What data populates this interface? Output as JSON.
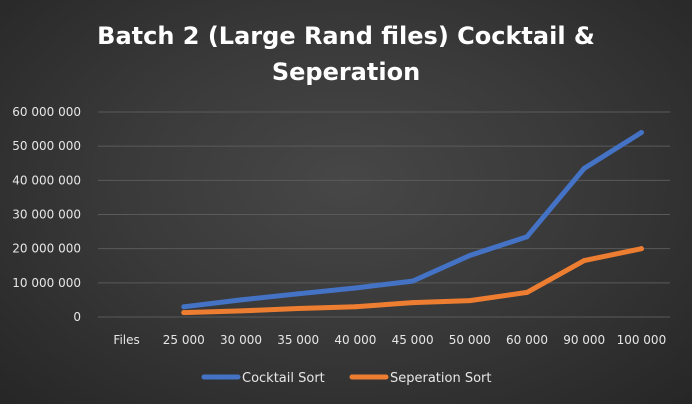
{
  "chart_data": {
    "type": "line",
    "title_lines": [
      "Batch 2 (Large Rand files) Cocktail &",
      "Seperation"
    ],
    "categories": [
      "Files",
      "25 000",
      "30 000",
      "35 000",
      "40 000",
      "45 000",
      "50 000",
      "60 000",
      "90 000",
      "100 000"
    ],
    "y_ticks": [
      "0",
      "10 000 000",
      "20 000 000",
      "30 000 000",
      "40 000 000",
      "50 000 000",
      "60 000 000"
    ],
    "ylim": [
      0,
      60000000
    ],
    "grid": true,
    "legend_position": "bottom",
    "series": [
      {
        "name": "Cocktail Sort",
        "color": "#4472c4",
        "values": [
          null,
          3000000,
          5000000,
          6800000,
          8500000,
          10500000,
          18000000,
          23500000,
          43500000,
          54000000
        ]
      },
      {
        "name": "Seperation Sort",
        "color": "#ed7d31",
        "values": [
          null,
          1300000,
          1800000,
          2500000,
          3000000,
          4200000,
          4800000,
          7200000,
          16500000,
          20000000
        ]
      }
    ]
  }
}
